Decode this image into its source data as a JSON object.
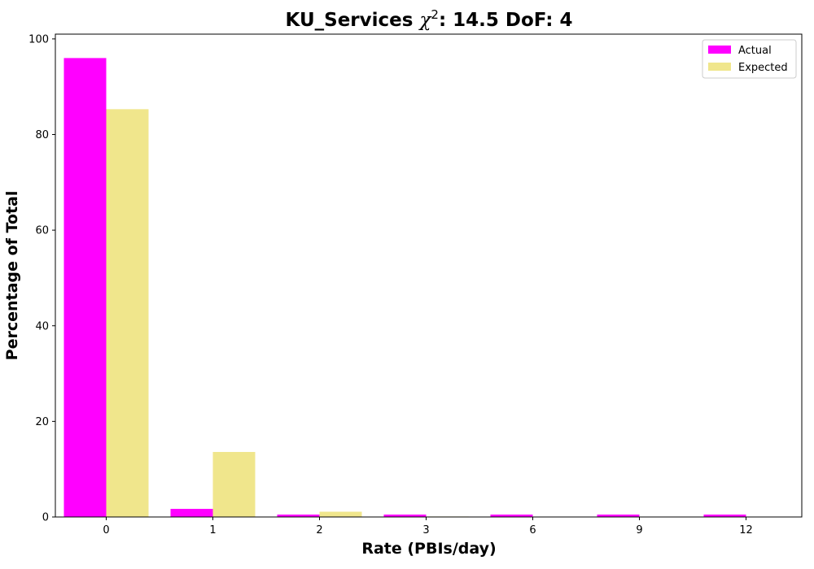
{
  "chart_data": {
    "type": "bar",
    "title_prefix": "KU_Services ",
    "title_chi": "χ",
    "title_sup": "2",
    "title_suffix": ": 14.5 DoF: 4",
    "xlabel": "Rate (PBIs/day)",
    "ylabel": "Percentage of Total",
    "categories": [
      "0",
      "1",
      "2",
      "3",
      "6",
      "9",
      "12"
    ],
    "series": [
      {
        "name": "Actual",
        "color": "#ff00ff",
        "values": [
          96.0,
          1.7,
          0.5,
          0.5,
          0.5,
          0.5,
          0.5
        ]
      },
      {
        "name": "Expected",
        "color": "#f0e68c",
        "values": [
          85.3,
          13.6,
          1.1,
          0.1,
          0.0,
          0.0,
          0.0
        ]
      }
    ],
    "ylim": [
      0,
      101
    ],
    "yticks": [
      0,
      20,
      40,
      60,
      80,
      100
    ],
    "grid": false,
    "legend_position": "top-right"
  }
}
